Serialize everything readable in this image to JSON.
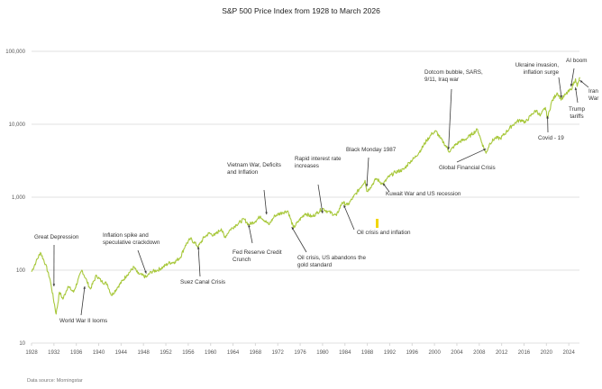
{
  "chart_data": {
    "type": "line",
    "title": "S&P 500 Price Index from 1928 to March 2026",
    "xlabel": "",
    "ylabel": "",
    "yscale": "log",
    "ylim": [
      10,
      100000
    ],
    "xlim": [
      1928,
      2026
    ],
    "grid": true,
    "line_color": "#a8c83c",
    "y_ticks": [
      {
        "value": 100000,
        "label": "100,000"
      },
      {
        "value": 10000,
        "label": "10,000"
      },
      {
        "value": 1000,
        "label": "1,000"
      },
      {
        "value": 100,
        "label": "100"
      },
      {
        "value": 10,
        "label": "10"
      }
    ],
    "x_ticks": [
      "1928",
      "1932",
      "1936",
      "1940",
      "1944",
      "1948",
      "1952",
      "1956",
      "1960",
      "1964",
      "1968",
      "1972",
      "1976",
      "1980",
      "1984",
      "1988",
      "1992",
      "1996",
      "2000",
      "2004",
      "2008",
      "2012",
      "2016",
      "2020",
      "2024"
    ],
    "series": [
      {
        "name": "S&P 500 Price Index",
        "x": [
          1928,
          1928.8,
          1929.6,
          1930.5,
          1931.3,
          1932.4,
          1933.0,
          1933.6,
          1934.5,
          1935.5,
          1937.0,
          1937.9,
          1938.5,
          1939.6,
          1940.5,
          1941.5,
          1942.3,
          1943.5,
          1945.0,
          1946.3,
          1947.0,
          1948.5,
          1949.4,
          1950.5,
          1951.5,
          1952.5,
          1953.6,
          1954.6,
          1955.5,
          1956.4,
          1957.8,
          1958.8,
          1959.7,
          1960.7,
          1961.9,
          1962.5,
          1963.5,
          1964.6,
          1966.0,
          1966.8,
          1968.0,
          1968.9,
          1970.4,
          1971.5,
          1972.9,
          1973.8,
          1974.8,
          1975.8,
          1976.9,
          1978.1,
          1978.9,
          1980.0,
          1980.9,
          1982.5,
          1983.5,
          1984.5,
          1985.5,
          1986.6,
          1987.6,
          1987.9,
          1988.5,
          1989.6,
          1990.8,
          1991.8,
          1993.0,
          1994.5,
          1995.5,
          1996.5,
          1997.6,
          1998.6,
          1999.6,
          2000.3,
          2001.0,
          2001.7,
          2002.7,
          2003.5,
          2004.5,
          2005.5,
          2006.6,
          2007.7,
          2008.5,
          2009.2,
          2009.9,
          2010.9,
          2011.8,
          2012.8,
          2013.8,
          2014.8,
          2015.7,
          2016.2,
          2017.5,
          2018.2,
          2018.9,
          2019.8,
          2020.2,
          2020.9,
          2021.9,
          2022.7,
          2023.5,
          2024.4,
          2025.2,
          2025.5,
          2026.0
        ],
        "values": [
          95,
          130,
          175,
          120,
          75,
          25,
          50,
          40,
          60,
          50,
          100,
          70,
          55,
          85,
          70,
          65,
          45,
          60,
          85,
          110,
          90,
          80,
          95,
          100,
          110,
          125,
          130,
          150,
          220,
          270,
          210,
          280,
          320,
          300,
          370,
          280,
          360,
          420,
          500,
          420,
          470,
          550,
          420,
          560,
          620,
          650,
          380,
          480,
          600,
          540,
          600,
          700,
          640,
          560,
          850,
          780,
          1000,
          1300,
          1700,
          1200,
          1350,
          1800,
          1500,
          1900,
          2200,
          2400,
          3000,
          3500,
          4500,
          6000,
          7500,
          8000,
          6500,
          5500,
          4200,
          5000,
          5800,
          6200,
          7200,
          8500,
          5500,
          4000,
          5500,
          6500,
          6400,
          7800,
          9500,
          11000,
          11500,
          10500,
          14000,
          15500,
          13000,
          17000,
          12000,
          20000,
          27000,
          22000,
          26000,
          30000,
          42000,
          33000,
          44000
        ]
      }
    ],
    "annotations": [
      {
        "text": [
          "Great Depression"
        ],
        "year": 1932,
        "value": 60
      },
      {
        "text": [
          "World War II looms"
        ],
        "year": 1937.5,
        "value": 60
      },
      {
        "text": [
          "Inflation spike and",
          "speculative crackdown"
        ],
        "year": 1948.5,
        "value": 90
      },
      {
        "text": [
          "Suez Canal Crisis"
        ],
        "year": 1957.8,
        "value": 210
      },
      {
        "text": [
          "Fed Reserve Credit",
          "Crunch"
        ],
        "year": 1966.8,
        "value": 420
      },
      {
        "text": [
          "Vietnam War, Deficits",
          "and Inflation"
        ],
        "year": 1970.0,
        "value": 580
      },
      {
        "text": [
          "Oil crisis, US abandons the",
          "gold standard"
        ],
        "year": 1974.5,
        "value": 390
      },
      {
        "text": [
          "Rapid interest rate",
          "increases"
        ],
        "year": 1980.0,
        "value": 600
      },
      {
        "text": [
          "Oil crisis and inflation"
        ],
        "year": 1983.8,
        "value": 780
      },
      {
        "text": [
          "Black Monday 1987"
        ],
        "year": 1987.9,
        "value": 1400
      },
      {
        "text": [
          "Kuwait War and US recession"
        ],
        "year": 1990.8,
        "value": 1550
      },
      {
        "text": [
          "Dotcom bubble, SARS,",
          "9/11, Iraq war"
        ],
        "year": 2002.5,
        "value": 4500
      },
      {
        "text": [
          "Global Financial Crisis"
        ],
        "year": 2009.2,
        "value": 4600
      },
      {
        "text": [
          "Covid - 19"
        ],
        "year": 2020.2,
        "value": 13000
      },
      {
        "text": [
          "Ukraine invasion,",
          "inflation surge"
        ],
        "year": 2022.7,
        "value": 23000
      },
      {
        "text": [
          "AI boom"
        ],
        "year": 2024.4,
        "value": 33000
      },
      {
        "text": [
          "Trump",
          "tariffs"
        ],
        "year": 2025.2,
        "value": 32000
      },
      {
        "text": [
          "Iran",
          "War"
        ],
        "year": 2026.0,
        "value": 40000
      }
    ],
    "highlight_marker_color": "#f2d600"
  },
  "source_note": "Data source: Morningstar"
}
